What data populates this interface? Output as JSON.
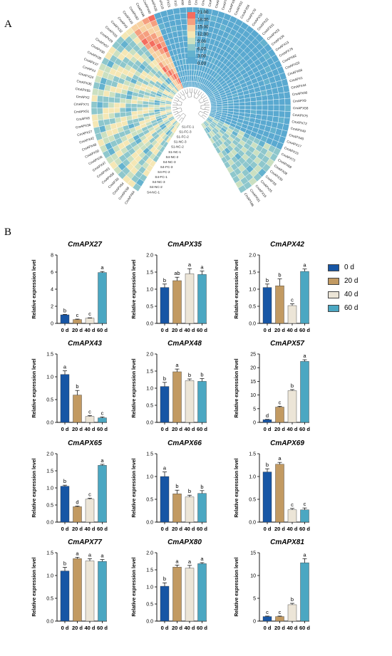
{
  "panel_a_label": "A",
  "panel_b_label": "B",
  "heatmap": {
    "colorbar": {
      "ticks": [
        "21.00",
        "18.00",
        "15.00",
        "12.00",
        "9.00",
        "6.00",
        "3.00",
        "0.00"
      ],
      "colors": [
        "#f46d5f",
        "#f59f7f",
        "#f7d1a2",
        "#f5e7b5",
        "#cbe0c1",
        "#8ec7cc",
        "#64b2cf",
        "#5aa9d0"
      ]
    },
    "sample_labels": [
      "S4-NC-1",
      "S4-NC-2",
      "S4-NC-3",
      "S4-FC-1",
      "S4-FC-2",
      "S4-FC-3",
      "S4-NC-3",
      "S4-NC-2",
      "S1-NC-1",
      "S1-NC-2",
      "S1-NC-3",
      "S1-FC-2",
      "S1-FC-3",
      "S1-FC-1"
    ],
    "genes": [
      "CmAPX64",
      "CmAPX68",
      "CmAPX54",
      "CmAPX8",
      "CmAPX58",
      "CmAPX61",
      "CmAPX47",
      "CmAPX26",
      "CmAPX50",
      "CmAPX48",
      "CmAPX42",
      "CmAPX27",
      "CmAPX36",
      "CmAPX6",
      "CmAPX51",
      "CmAPX71",
      "CmAPX2",
      "CmAPX65",
      "CmAPX35",
      "CmAPX24",
      "CmAPX4",
      "CmAPX37",
      "CmAPX38",
      "CmAPX30",
      "CmAPX57",
      "CmAPX29",
      "CmAPX55",
      "CmAPX32",
      "CmAPX9",
      "CmAPX49",
      "CmAPX80",
      "CmAPX46",
      "CmAPX40",
      "CmAPX39",
      "CmAPX19",
      "CmAPX21",
      "CmAPX10",
      "CmAPX60",
      "CmAPX63",
      "CmAPX41",
      "CmAPX59",
      "CmAPX14",
      "CmAPX67",
      "CmAPX18",
      "CmAPX65",
      "CmAPX52",
      "CmAPX56",
      "CmAPX70",
      "CmAPX53",
      "CmAPX22",
      "CmAPX11",
      "CmAPX23",
      "CmAPX34",
      "CmAPX13",
      "CmAPX79",
      "CmAPX82",
      "CmAPX20",
      "CmAPX66",
      "CmAPX1",
      "CmAPX44",
      "CmAPX90",
      "CmAPX9",
      "CmAPX58",
      "CmAPX75",
      "CmAPX72",
      "CmAPX49",
      "CmAPX40",
      "CmAPX17",
      "CmAPX15",
      "CmAPX73",
      "CmAPX69",
      "CmAPX28",
      "CmAPX30",
      "CmAPX8",
      "CmAPX25",
      "CmAPX16",
      "CmAPX81",
      "CmAPX66"
    ]
  },
  "legend": {
    "items": [
      {
        "label": "0 d",
        "color": "#1756a5"
      },
      {
        "label": "20 d",
        "color": "#c29a62"
      },
      {
        "label": "40 d",
        "color": "#ece5d7"
      },
      {
        "label": "60 d",
        "color": "#4ba7c2"
      }
    ]
  },
  "chart_data": [
    {
      "type": "bar",
      "title": "CmAPX27",
      "ylabel": "Relative expression level",
      "categories": [
        "0 d",
        "20 d",
        "40 d",
        "60 d"
      ],
      "values": [
        1.0,
        0.45,
        0.6,
        5.95
      ],
      "errors": [
        0.05,
        0.05,
        0.05,
        0.12
      ],
      "letters": [
        "b",
        "c",
        "c",
        "a"
      ],
      "ylim": [
        0,
        8
      ],
      "yticks": [
        "0",
        "2",
        "4",
        "6",
        "8"
      ]
    },
    {
      "type": "bar",
      "title": "CmAPX35",
      "ylabel": "Relative expression level",
      "categories": [
        "0 d",
        "20 d",
        "40 d",
        "60 d"
      ],
      "values": [
        1.05,
        1.25,
        1.45,
        1.43
      ],
      "errors": [
        0.1,
        0.1,
        0.15,
        0.1
      ],
      "letters": [
        "b",
        "ab",
        "a",
        "a"
      ],
      "ylim": [
        0,
        2.0
      ],
      "yticks": [
        "0.0",
        "0.5",
        "1.0",
        "1.5",
        "2.0"
      ]
    },
    {
      "type": "bar",
      "title": "CmAPX42",
      "ylabel": "Relative expression level",
      "categories": [
        "0 d",
        "20 d",
        "40 d",
        "60 d"
      ],
      "values": [
        1.05,
        1.1,
        0.52,
        1.52
      ],
      "errors": [
        0.1,
        0.2,
        0.05,
        0.07
      ],
      "letters": [
        "b",
        "b",
        "c",
        "a"
      ],
      "ylim": [
        0,
        2.0
      ],
      "yticks": [
        "0.0",
        "0.5",
        "1.0",
        "1.5",
        "2.0"
      ]
    },
    {
      "type": "bar",
      "title": "CmAPX43",
      "ylabel": "Relative expression level",
      "categories": [
        "0 d",
        "20 d",
        "40 d",
        "60 d"
      ],
      "values": [
        1.05,
        0.6,
        0.13,
        0.1
      ],
      "errors": [
        0.08,
        0.1,
        0.02,
        0.02
      ],
      "letters": [
        "a",
        "b",
        "c",
        "c"
      ],
      "ylim": [
        0,
        1.5
      ],
      "yticks": [
        "0.0",
        "0.5",
        "1.0",
        "1.5"
      ]
    },
    {
      "type": "bar",
      "title": "CmAPX48",
      "ylabel": "Relative expression level",
      "categories": [
        "0 d",
        "20 d",
        "40 d",
        "60 d"
      ],
      "values": [
        1.05,
        1.48,
        1.22,
        1.2
      ],
      "errors": [
        0.12,
        0.08,
        0.05,
        0.08
      ],
      "letters": [
        "b",
        "a",
        "b",
        "b"
      ],
      "ylim": [
        0,
        2.0
      ],
      "yticks": [
        "0.0",
        "0.5",
        "1.0",
        "1.5",
        "2.0"
      ]
    },
    {
      "type": "bar",
      "title": "CmAPX57",
      "ylabel": "Relative expression level",
      "categories": [
        "0 d",
        "20 d",
        "40 d",
        "60 d"
      ],
      "values": [
        1.0,
        5.6,
        11.6,
        22.3
      ],
      "errors": [
        0.1,
        0.3,
        0.4,
        0.6
      ],
      "letters": [
        "d",
        "c",
        "b",
        "a"
      ],
      "ylim": [
        0,
        25
      ],
      "yticks": [
        "0",
        "5",
        "10",
        "15",
        "20",
        "25"
      ]
    },
    {
      "type": "bar",
      "title": "CmAPX65",
      "ylabel": "Relative expression level",
      "categories": [
        "0 d",
        "20 d",
        "40 d",
        "60 d"
      ],
      "values": [
        1.05,
        0.45,
        0.67,
        1.66
      ],
      "errors": [
        0.03,
        0.02,
        0.03,
        0.03
      ],
      "letters": [
        "b",
        "d",
        "c",
        "a"
      ],
      "ylim": [
        0,
        2.0
      ],
      "yticks": [
        "0.0",
        "0.5",
        "1.0",
        "1.5",
        "2.0"
      ]
    },
    {
      "type": "bar",
      "title": "CmAPX66",
      "ylabel": "Relative expression level",
      "categories": [
        "0 d",
        "20 d",
        "40 d",
        "60 d"
      ],
      "values": [
        1.0,
        0.62,
        0.55,
        0.63
      ],
      "errors": [
        0.1,
        0.08,
        0.04,
        0.06
      ],
      "letters": [
        "a",
        "b",
        "b",
        "b"
      ],
      "ylim": [
        0,
        1.5
      ],
      "yticks": [
        "0.0",
        "0.5",
        "1.0",
        "1.5"
      ]
    },
    {
      "type": "bar",
      "title": "CmAPX69",
      "ylabel": "Relative expression level",
      "categories": [
        "0 d",
        "20 d",
        "40 d",
        "60 d"
      ],
      "values": [
        1.1,
        1.27,
        0.27,
        0.27
      ],
      "errors": [
        0.07,
        0.04,
        0.03,
        0.04
      ],
      "letters": [
        "b",
        "a",
        "c",
        "c"
      ],
      "ylim": [
        0,
        1.5
      ],
      "yticks": [
        "0.0",
        "0.5",
        "1.0",
        "1.5"
      ]
    },
    {
      "type": "bar",
      "title": "CmAPX77",
      "ylabel": "Relative expression level",
      "categories": [
        "0 d",
        "20 d",
        "40 d",
        "60 d"
      ],
      "values": [
        1.1,
        1.37,
        1.32,
        1.31
      ],
      "errors": [
        0.08,
        0.03,
        0.05,
        0.04
      ],
      "letters": [
        "b",
        "a",
        "a",
        "a"
      ],
      "ylim": [
        0,
        1.5
      ],
      "yticks": [
        "0.0",
        "0.5",
        "1.0",
        "1.5"
      ]
    },
    {
      "type": "bar",
      "title": "CmAPX80",
      "ylabel": "Relative expression level",
      "categories": [
        "0 d",
        "20 d",
        "40 d",
        "60 d"
      ],
      "values": [
        1.02,
        1.58,
        1.55,
        1.68
      ],
      "errors": [
        0.1,
        0.06,
        0.08,
        0.03
      ],
      "letters": [
        "b",
        "a",
        "a",
        "a"
      ],
      "ylim": [
        0,
        2.0
      ],
      "yticks": [
        "0.0",
        "0.5",
        "1.0",
        "1.5",
        "2.0"
      ]
    },
    {
      "type": "bar",
      "title": "CmAPX81",
      "ylabel": "Relative expression level",
      "categories": [
        "0 d",
        "20 d",
        "40 d",
        "60 d"
      ],
      "values": [
        1.0,
        1.0,
        3.6,
        12.8
      ],
      "errors": [
        0.1,
        0.1,
        0.3,
        0.9
      ],
      "letters": [
        "c",
        "c",
        "b",
        "a"
      ],
      "ylim": [
        0,
        15
      ],
      "yticks": [
        "0",
        "5",
        "10",
        "15"
      ]
    }
  ]
}
